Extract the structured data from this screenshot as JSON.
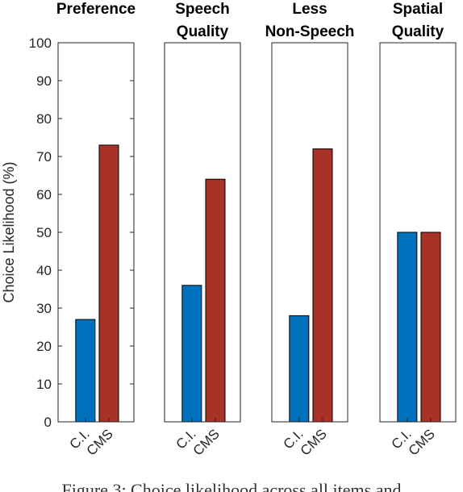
{
  "chart_data": {
    "type": "bar",
    "ylabel": "Choice Likelihood (%)",
    "ylim": [
      0,
      100
    ],
    "yticks": [
      0,
      10,
      20,
      30,
      40,
      50,
      60,
      70,
      80,
      90,
      100
    ],
    "categories": [
      "C.I.",
      "CMS"
    ],
    "colors": [
      "#0072BD",
      "#A93226"
    ],
    "grid": false,
    "panels": [
      {
        "title_lines": [
          "Preference"
        ],
        "values": [
          27,
          73
        ]
      },
      {
        "title_lines": [
          "Speech",
          "Quality"
        ],
        "values": [
          36,
          64
        ]
      },
      {
        "title_lines": [
          "Less",
          "Non-Speech"
        ],
        "values": [
          28,
          72
        ]
      },
      {
        "title_lines": [
          "Spatial",
          "Quality"
        ],
        "values": [
          50,
          50
        ]
      }
    ]
  },
  "caption": "Figure 3: Choice likelihood across all items and"
}
